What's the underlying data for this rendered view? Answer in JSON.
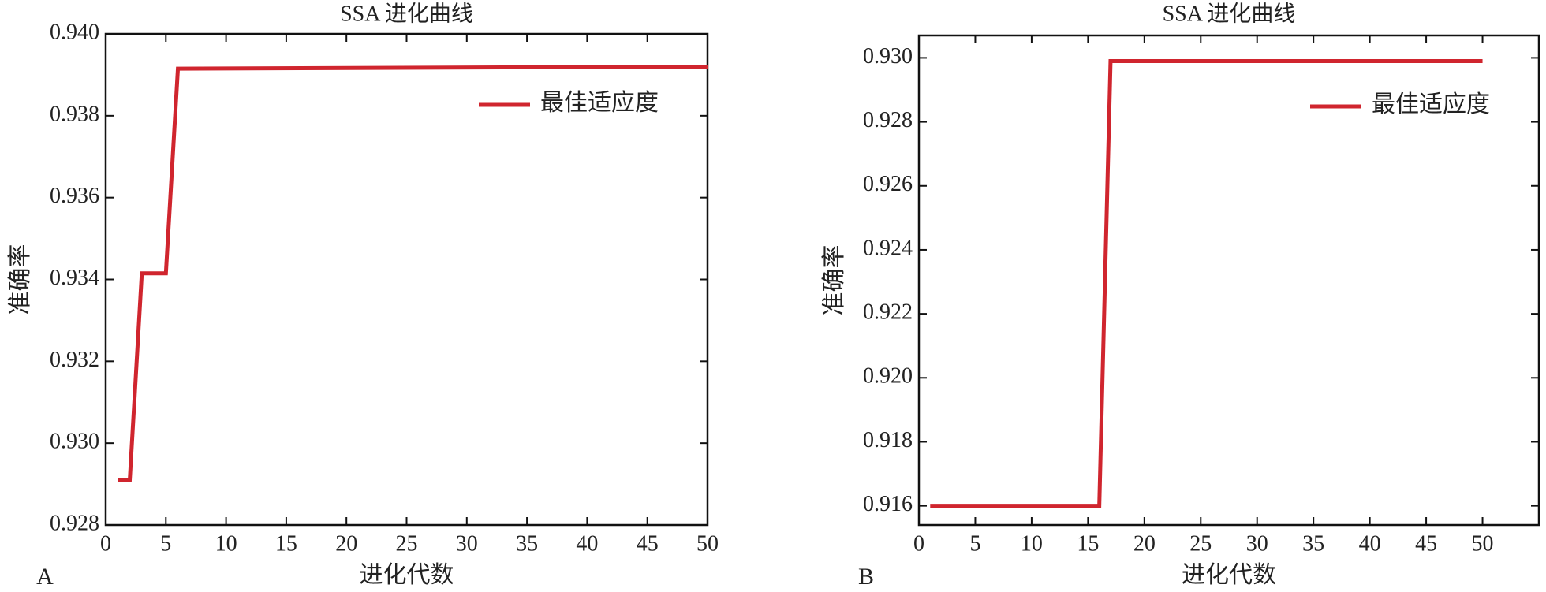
{
  "chart_data": [
    {
      "type": "line",
      "title": "SSA 进化曲线",
      "panel_label": "A",
      "xlabel": "进化代数",
      "ylabel": "准确率",
      "x": [
        1,
        2,
        3,
        5,
        6,
        50
      ],
      "series": [
        {
          "name": "最佳适应度",
          "color": "#d0252e",
          "values": [
            0.9291,
            0.9291,
            0.93415,
            0.93415,
            0.93915,
            0.9392
          ]
        }
      ],
      "xlim": [
        0,
        50
      ],
      "xticks": [
        0,
        5,
        10,
        15,
        20,
        25,
        30,
        35,
        40,
        45,
        50
      ],
      "ylim": [
        0.928,
        0.94
      ],
      "yticks": [
        {
          "value": 0.928,
          "label": "0.928"
        },
        {
          "value": 0.93,
          "label": "0.930"
        },
        {
          "value": 0.932,
          "label": "0.932"
        },
        {
          "value": 0.934,
          "label": "0.934"
        },
        {
          "value": 0.936,
          "label": "0.936"
        },
        {
          "value": 0.938,
          "label": "0.938"
        },
        {
          "value": 0.94,
          "label": "0.940"
        }
      ],
      "legend": "upper right"
    },
    {
      "type": "line",
      "title": "SSA 进化曲线",
      "panel_label": "B",
      "xlabel": "进化代数",
      "ylabel": "准确率",
      "x": [
        1,
        16,
        17,
        50
      ],
      "series": [
        {
          "name": "最佳适应度",
          "color": "#d0252e",
          "values": [
            0.916,
            0.916,
            0.9299,
            0.9299
          ]
        }
      ],
      "xlim": [
        0,
        55
      ],
      "xticks": [
        0,
        5,
        10,
        15,
        20,
        25,
        30,
        35,
        40,
        45,
        50
      ],
      "ylim": [
        0.9154,
        0.9307
      ],
      "yticks": [
        {
          "value": 0.916,
          "label": "0.916"
        },
        {
          "value": 0.918,
          "label": "0.918"
        },
        {
          "value": 0.92,
          "label": "0.920"
        },
        {
          "value": 0.922,
          "label": "0.922"
        },
        {
          "value": 0.924,
          "label": "0.924"
        },
        {
          "value": 0.926,
          "label": "0.926"
        },
        {
          "value": 0.928,
          "label": "0.928"
        },
        {
          "value": 0.93,
          "label": "0.930"
        }
      ],
      "legend": "upper right"
    }
  ]
}
